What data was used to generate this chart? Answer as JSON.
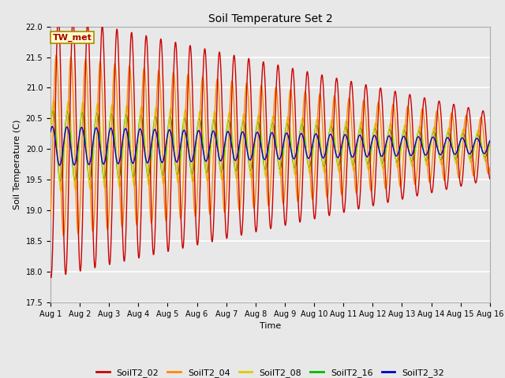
{
  "title": "Soil Temperature Set 2",
  "xlabel": "Time",
  "ylabel": "Soil Temperature (C)",
  "ylim": [
    17.5,
    22.0
  ],
  "xlim": [
    0,
    15
  ],
  "series_colors": {
    "SoilT2_02": "#cc0000",
    "SoilT2_04": "#ff8800",
    "SoilT2_08": "#ddcc00",
    "SoilT2_16": "#00bb00",
    "SoilT2_32": "#0000cc"
  },
  "annotation_text": "TW_met",
  "annotation_box_facecolor": "#ffffcc",
  "annotation_box_edgecolor": "#aa8800",
  "annotation_text_color": "#aa0000",
  "plot_bg_color": "#e8e8e8",
  "grid_color": "#ffffff",
  "n_points": 1440,
  "period_hours": 12,
  "base_temp": 20.05,
  "amp_02_start": 2.15,
  "amp_02_end": 0.55,
  "amp_04_start": 1.5,
  "amp_04_end": 0.45,
  "amp_08_start": 0.75,
  "amp_08_end": 0.25,
  "amp_16_start": 0.58,
  "amp_16_end": 0.18,
  "amp_32_start": 0.32,
  "amp_32_end": 0.12,
  "phase_02": -1.8,
  "phase_04": -0.9,
  "phase_08": 0.2,
  "phase_16": 0.5,
  "phase_32": 0.8,
  "yticks": [
    17.5,
    18.0,
    18.5,
    19.0,
    19.5,
    20.0,
    20.5,
    21.0,
    21.5,
    22.0
  ],
  "xtick_days": [
    0,
    1,
    2,
    3,
    4,
    5,
    6,
    7,
    8,
    9,
    10,
    11,
    12,
    13,
    14,
    15
  ],
  "xtick_labels": [
    "Aug 1",
    "Aug 2",
    "Aug 3",
    "Aug 4",
    "Aug 5",
    "Aug 6",
    "Aug 7",
    "Aug 8",
    "Aug 9",
    "Aug 10",
    "Aug 11",
    "Aug 12",
    "Aug 13",
    "Aug 14",
    "Aug 15",
    "Aug 16"
  ],
  "title_fontsize": 10,
  "label_fontsize": 8,
  "tick_fontsize": 7,
  "legend_fontsize": 8,
  "line_width": 1.0
}
